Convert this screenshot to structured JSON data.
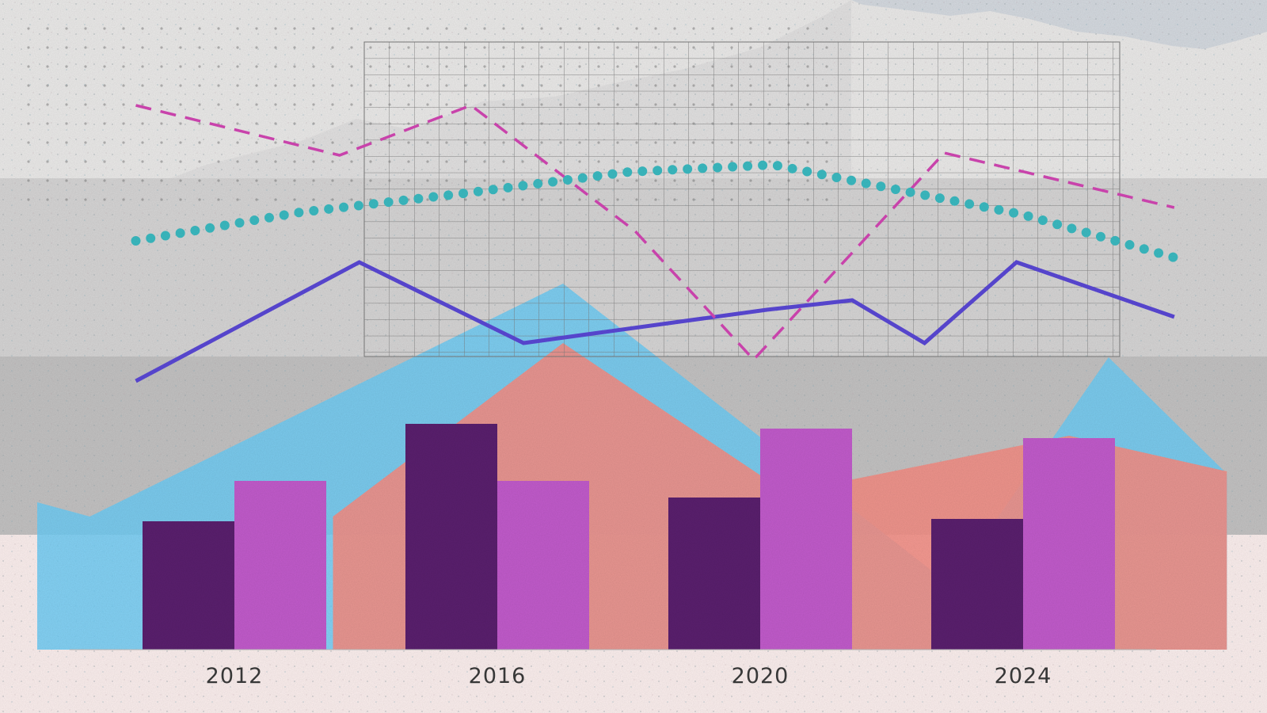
{
  "chart_data": {
    "type": "bar",
    "categories": [
      "2012",
      "2016",
      "2020",
      "2024"
    ],
    "ylim": [
      0,
      10
    ],
    "grid": true,
    "series": [
      {
        "values": [
          5.4,
          9.5,
          6.4,
          5.5
        ],
        "color": "#5a1f6e",
        "kind": "bar"
      },
      {
        "values": [
          7.1,
          7.1,
          9.3,
          8.9
        ],
        "color": "#c25bcc",
        "kind": "bar"
      }
    ],
    "overlays": [
      {
        "kind": "line",
        "style": "solid",
        "color": "#5a48d6",
        "x": [
          2010.5,
          2013.9,
          2016.4,
          2020.1,
          2021.4,
          2022.5,
          2023.9,
          2026.3
        ],
        "y": [
          11.3,
          16.3,
          12.9,
          14.3,
          14.7,
          12.9,
          16.3,
          14.0
        ]
      },
      {
        "kind": "line",
        "style": "dashed",
        "color": "#d346b4",
        "x": [
          2010.5,
          2013.6,
          2015.6,
          2018.1,
          2019.9,
          2022.8,
          2026.3
        ],
        "y": [
          22.9,
          20.8,
          22.9,
          17.6,
          12.2,
          20.9,
          18.6
        ]
      },
      {
        "kind": "line",
        "style": "dotted",
        "color": "#3bbbc2",
        "x": [
          2010.5,
          2013.0,
          2015.5,
          2018.0,
          2020.2,
          2022.0,
          2024.0,
          2026.3
        ],
        "y": [
          17.2,
          18.4,
          19.2,
          20.1,
          20.4,
          19.4,
          18.3,
          16.5
        ]
      },
      {
        "kind": "area",
        "color": "#6ecdf6",
        "x": [
          2009.0,
          2009.8,
          2017.0,
          2022.9,
          2025.3,
          2027.1
        ],
        "y": [
          6.2,
          5.6,
          15.4,
          2.7,
          12.3,
          7.4
        ]
      },
      {
        "kind": "area",
        "color": "#f48f86",
        "x": [
          2013.5,
          2017.0,
          2020.4,
          2024.7,
          2027.1
        ],
        "y": [
          5.6,
          12.9,
          6.6,
          9.0,
          7.5
        ]
      }
    ]
  }
}
